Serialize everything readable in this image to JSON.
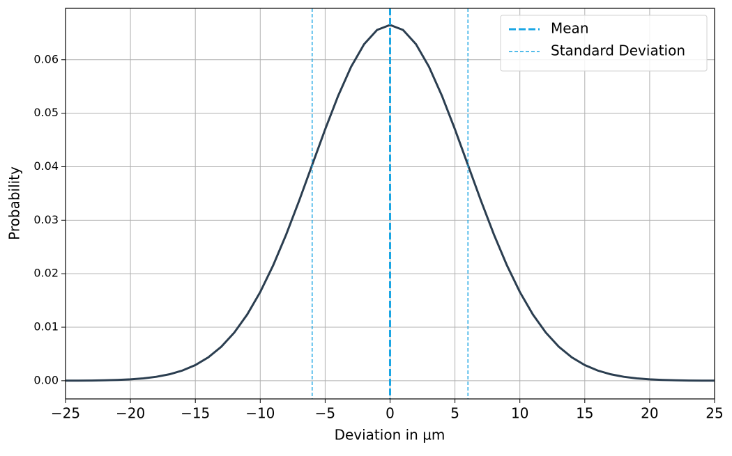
{
  "chart_data": {
    "type": "line",
    "xlabel": "Deviation in µm",
    "ylabel": "Probability",
    "x": [
      -25,
      -24,
      -23,
      -22,
      -21,
      -20,
      -19,
      -18,
      -17,
      -16,
      -15,
      -14,
      -13,
      -12,
      -11,
      -10,
      -9,
      -8,
      -7,
      -6,
      -5,
      -4,
      -3,
      -2,
      -1,
      0,
      1,
      2,
      3,
      4,
      5,
      6,
      7,
      8,
      9,
      10,
      11,
      12,
      13,
      14,
      15,
      16,
      17,
      18,
      19,
      20,
      21,
      22,
      23,
      24,
      25
    ],
    "curve": {
      "color": "#2b3e50",
      "values": [
        1e-05,
        2e-05,
        4e-05,
        8e-05,
        0.00015,
        0.00026,
        0.00044,
        0.00074,
        0.0012,
        0.0019,
        0.00292,
        0.00437,
        0.00636,
        0.009,
        0.01239,
        0.01658,
        0.02159,
        0.02733,
        0.03367,
        0.04033,
        0.04698,
        0.05324,
        0.05868,
        0.0629,
        0.06557,
        0.06649,
        0.06557,
        0.0629,
        0.05868,
        0.05324,
        0.04698,
        0.04033,
        0.03367,
        0.02733,
        0.02159,
        0.01658,
        0.01239,
        0.009,
        0.00636,
        0.00437,
        0.00292,
        0.0019,
        0.0012,
        0.00074,
        0.00044,
        0.00026,
        0.00015,
        8e-05,
        4e-05,
        2e-05,
        1e-05
      ]
    },
    "reference_lines": [
      {
        "name": "Mean",
        "color": "#1aa6e4",
        "style": "thick-dashed",
        "x": [
          0
        ]
      },
      {
        "name": "Standard Deviation",
        "color": "#1aa6e4",
        "style": "thin-dashed",
        "x": [
          -6,
          6
        ]
      }
    ],
    "xlim": [
      -25,
      25
    ],
    "ylim": [
      -0.0034,
      0.0696
    ],
    "xticks": [
      {
        "value": -25,
        "label": "−25"
      },
      {
        "value": -20,
        "label": "−20"
      },
      {
        "value": -15,
        "label": "−15"
      },
      {
        "value": -10,
        "label": "−10"
      },
      {
        "value": -5,
        "label": "−5"
      },
      0,
      5,
      10,
      15,
      20,
      25
    ],
    "yticks": [
      {
        "value": 0,
        "label": "0.00"
      },
      {
        "value": 0.01,
        "label": "0.01"
      },
      {
        "value": 0.02,
        "label": "0.02"
      },
      {
        "value": 0.03,
        "label": "0.03"
      },
      {
        "value": 0.04,
        "label": "0.04"
      },
      {
        "value": 0.05,
        "label": "0.05"
      },
      {
        "value": 0.06,
        "label": "0.06"
      }
    ],
    "grid": true,
    "legend": "upper right"
  }
}
